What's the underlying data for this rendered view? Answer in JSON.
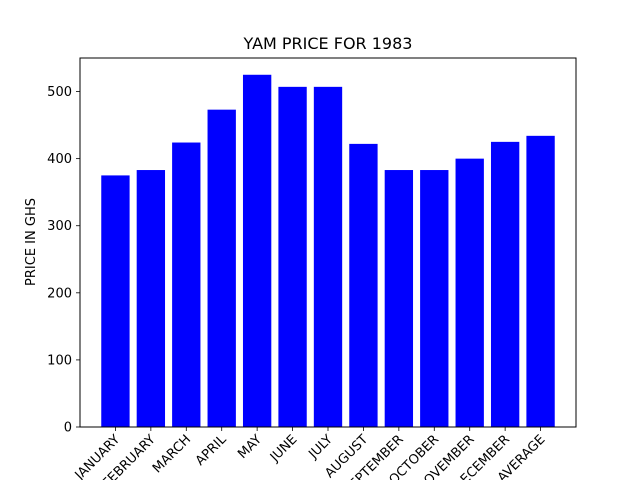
{
  "chart_data": {
    "type": "bar",
    "title": "YAM PRICE FOR 1983",
    "xlabel": "",
    "ylabel": "PRICE IN GHS",
    "categories": [
      "JANUARY",
      "FEBRUARY",
      "MARCH",
      "APRIL",
      "MAY",
      "JUNE",
      "JULY",
      "AUGUST",
      "SEPTEMBER",
      "OCTOBER",
      "NOVEMBER",
      "DECEMBER",
      "AVERAGE"
    ],
    "values": [
      375,
      383,
      424,
      473,
      525,
      507,
      507,
      422,
      383,
      383,
      400,
      425,
      434
    ],
    "ylim": [
      0,
      550
    ],
    "yticks": [
      0,
      100,
      200,
      300,
      400,
      500
    ],
    "bar_color": "#0000ff",
    "grid": false,
    "legend": "none"
  }
}
